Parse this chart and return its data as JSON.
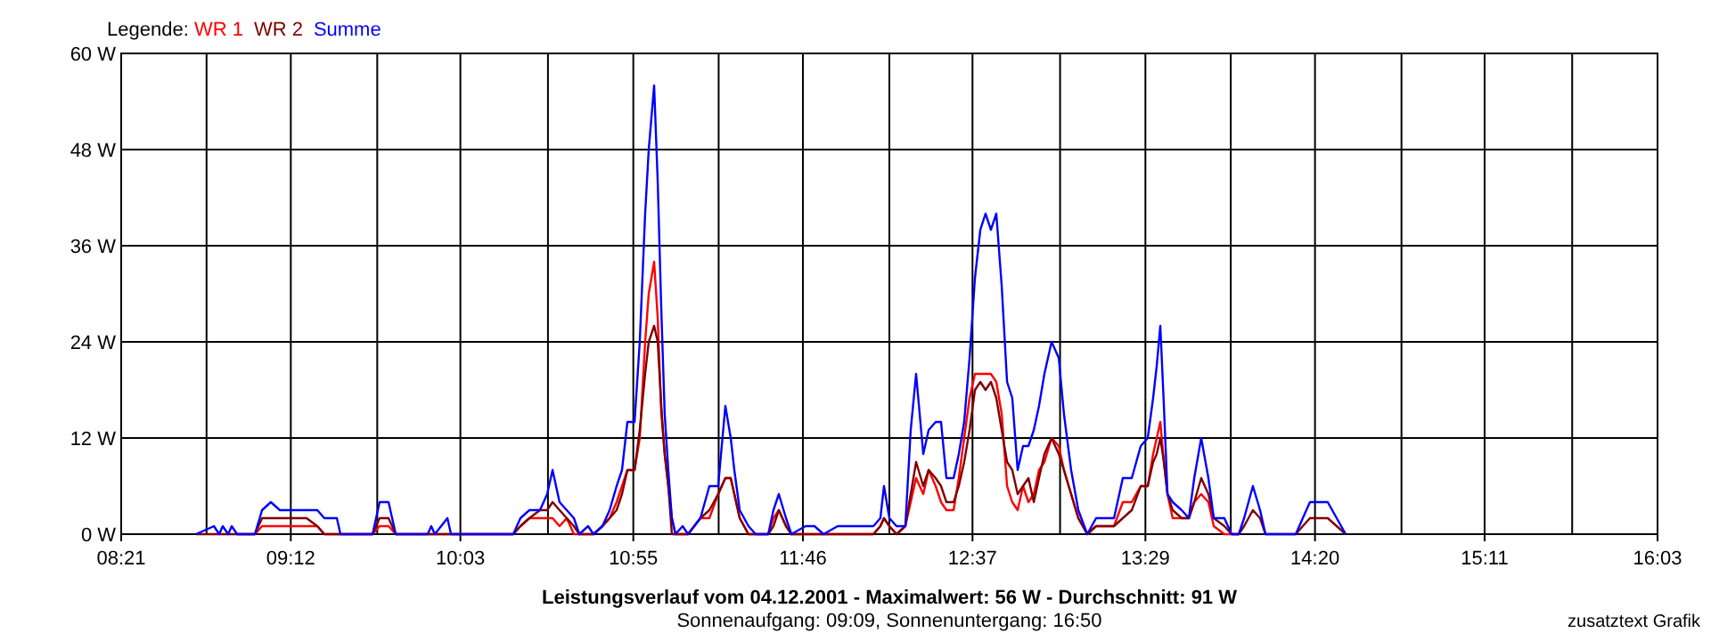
{
  "chart_data": {
    "type": "line",
    "title": "Leistungsverlauf vom 04.12.2001 - Maximalwert: 56 W - Durchschnitt: 91 W",
    "subtitle": "Sonnenaufgang: 09:09, Sonnenuntergang: 16:50",
    "annotations": [
      "zusatztext Grafik"
    ],
    "legend_title": "Legende:",
    "legend": "top left",
    "grid": true,
    "x": [
      8.725,
      8.815,
      8.841,
      8.859,
      8.886,
      8.904,
      8.931,
      9.02,
      9.056,
      9.1,
      9.145,
      9.216,
      9.279,
      9.333,
      9.368,
      9.431,
      9.449,
      9.61,
      9.645,
      9.69,
      9.726,
      9.886,
      9.904,
      9.922,
      9.985,
      10.003,
      10.315,
      10.351,
      10.396,
      10.449,
      10.485,
      10.512,
      10.547,
      10.583,
      10.619,
      10.646,
      10.69,
      10.717,
      10.762,
      10.798,
      10.833,
      10.86,
      10.887,
      10.923,
      10.949,
      10.976,
      10.994,
      11.021,
      11.039,
      11.057,
      11.074,
      11.092,
      11.11,
      11.128,
      11.164,
      11.191,
      11.253,
      11.298,
      11.342,
      11.378,
      11.405,
      11.423,
      11.45,
      11.494,
      11.53,
      11.593,
      11.619,
      11.646,
      11.682,
      11.709,
      11.78,
      11.825,
      11.87,
      11.941,
      12.004,
      12.12,
      12.155,
      12.173,
      12.2,
      12.236,
      12.28,
      12.307,
      12.334,
      12.37,
      12.397,
      12.432,
      12.459,
      12.486,
      12.522,
      12.548,
      12.575,
      12.602,
      12.629,
      12.656,
      12.682,
      12.709,
      12.736,
      12.763,
      12.79,
      12.816,
      12.843,
      12.87,
      12.897,
      12.924,
      12.95,
      12.977,
      13.013,
      13.049,
      13.075,
      13.111,
      13.147,
      13.192,
      13.236,
      13.326,
      13.37,
      13.415,
      13.46,
      13.495,
      13.522,
      13.54,
      13.558,
      13.576,
      13.594,
      13.62,
      13.665,
      13.701,
      13.728,
      13.763,
      13.799,
      13.826,
      13.879,
      13.915,
      13.951,
      13.978,
      14.022,
      14.058,
      14.085,
      14.237,
      14.272,
      14.308,
      14.397,
      14.442,
      14.487
    ],
    "series": [
      {
        "name": "WR 1",
        "color": "#ff0000",
        "values": [
          null,
          null,
          null,
          null,
          null,
          null,
          0,
          0,
          1,
          1,
          1,
          1,
          1,
          1,
          0,
          0,
          0,
          0,
          1,
          1,
          0,
          0,
          0,
          0,
          0,
          0,
          0,
          1,
          2,
          2,
          2,
          2,
          1,
          2,
          0,
          0,
          0,
          0,
          1,
          2,
          4,
          6,
          8,
          8,
          12,
          24,
          30,
          34,
          27,
          15,
          10,
          6,
          2,
          0,
          0,
          0,
          2,
          2,
          5,
          7,
          7,
          5,
          2,
          0,
          0,
          0,
          2,
          3,
          1,
          0,
          0,
          0,
          0,
          0,
          0,
          0,
          1,
          2,
          1,
          0,
          1,
          4,
          7,
          5,
          8,
          6,
          4,
          3,
          3,
          7,
          12,
          17,
          20,
          20,
          20,
          20,
          19,
          15,
          6,
          4,
          3,
          6,
          4,
          5,
          8,
          9,
          12,
          11,
          8,
          5,
          2,
          0,
          1,
          1,
          4,
          4,
          6,
          6,
          10,
          12,
          14,
          9,
          5,
          2,
          2,
          2,
          4,
          5,
          4,
          1,
          0,
          0,
          0,
          null,
          null,
          null,
          null,
          null,
          null,
          null,
          null,
          null,
          null
        ]
      },
      {
        "name": "WR 2",
        "color": "#800000",
        "values": [
          0,
          0,
          0,
          0,
          0,
          0,
          0,
          0,
          2,
          2,
          2,
          2,
          2,
          1,
          0,
          0,
          0,
          0,
          2,
          2,
          0,
          0,
          0,
          0,
          0,
          0,
          0,
          1,
          2,
          3,
          3,
          4,
          3,
          2,
          1,
          0,
          0,
          0,
          1,
          2,
          3,
          5,
          8,
          8,
          13,
          20,
          24,
          26,
          24,
          16,
          10,
          6,
          0,
          0,
          0,
          0,
          2,
          3,
          5,
          7,
          7,
          5,
          2,
          0,
          0,
          0,
          1,
          3,
          1,
          0,
          0,
          0,
          0,
          0,
          0,
          0,
          1,
          2,
          1,
          0,
          1,
          5,
          9,
          6,
          8,
          7,
          6,
          4,
          4,
          6,
          9,
          13,
          18,
          19,
          18,
          19,
          17,
          13,
          9,
          8,
          5,
          6,
          7,
          4,
          7,
          10,
          12,
          10,
          8,
          5,
          2,
          0,
          1,
          1,
          2,
          3,
          6,
          6,
          9,
          10,
          12,
          9,
          5,
          3,
          2,
          2,
          4,
          7,
          5,
          2,
          1,
          0,
          0,
          1,
          3,
          2,
          0,
          0,
          1,
          2,
          2,
          1,
          0
        ]
      },
      {
        "name": "Summe",
        "color": "#0000ff",
        "values": [
          0,
          1,
          0,
          1,
          0,
          1,
          0,
          0,
          3,
          4,
          3,
          3,
          3,
          3,
          2,
          2,
          0,
          0,
          4,
          4,
          0,
          0,
          1,
          0,
          2,
          0,
          0,
          2,
          3,
          3,
          5,
          8,
          4,
          3,
          2,
          0,
          1,
          0,
          1,
          3,
          6,
          8,
          14,
          14,
          24,
          40,
          48,
          56,
          44,
          28,
          15,
          8,
          2,
          0,
          1,
          0,
          2,
          6,
          6,
          16,
          12,
          8,
          3,
          1,
          0,
          0,
          3,
          5,
          2,
          0,
          1,
          1,
          0,
          1,
          1,
          1,
          2,
          6,
          2,
          1,
          1,
          13,
          20,
          10,
          13,
          14,
          14,
          7,
          7,
          10,
          14,
          22,
          32,
          38,
          40,
          38,
          40,
          31,
          19,
          17,
          8,
          11,
          11,
          13,
          16,
          20,
          24,
          22,
          15,
          8,
          3,
          0,
          2,
          2,
          7,
          7,
          11,
          12,
          17,
          21,
          26,
          16,
          5,
          4,
          3,
          2,
          7,
          12,
          7,
          2,
          2,
          0,
          0,
          2,
          6,
          3,
          0,
          0,
          2,
          4,
          4,
          2,
          0
        ]
      }
    ],
    "xlim": [
      8.35,
      16.05
    ],
    "xticks": [
      {
        "value": 8.35,
        "label": "08:21"
      },
      {
        "value": 8.7778,
        "label": null
      },
      {
        "value": 9.2,
        "label": "09:12"
      },
      {
        "value": 9.6333,
        "label": null
      },
      {
        "value": 10.05,
        "label": "10:03"
      },
      {
        "value": 10.4889,
        "label": null
      },
      {
        "value": 10.9167,
        "label": "10:55"
      },
      {
        "value": 11.3444,
        "label": null
      },
      {
        "value": 11.7667,
        "label": "11:46"
      },
      {
        "value": 12.2,
        "label": null
      },
      {
        "value": 12.6167,
        "label": "12:37"
      },
      {
        "value": 13.0556,
        "label": null
      },
      {
        "value": 13.4833,
        "label": "13:29"
      },
      {
        "value": 13.9111,
        "label": null
      },
      {
        "value": 14.3333,
        "label": "14:20"
      },
      {
        "value": 14.7667,
        "label": null
      },
      {
        "value": 15.1833,
        "label": "15:11"
      },
      {
        "value": 15.6222,
        "label": null
      },
      {
        "value": 16.05,
        "label": "16:03"
      }
    ],
    "ylim": [
      0,
      60
    ],
    "yticks": [
      {
        "value": 0,
        "label": "0 W"
      },
      {
        "value": 12,
        "label": "12 W"
      },
      {
        "value": 24,
        "label": "24 W"
      },
      {
        "value": 36,
        "label": "36 W"
      },
      {
        "value": 48,
        "label": "48 W"
      },
      {
        "value": 60,
        "label": "60 W"
      }
    ]
  }
}
